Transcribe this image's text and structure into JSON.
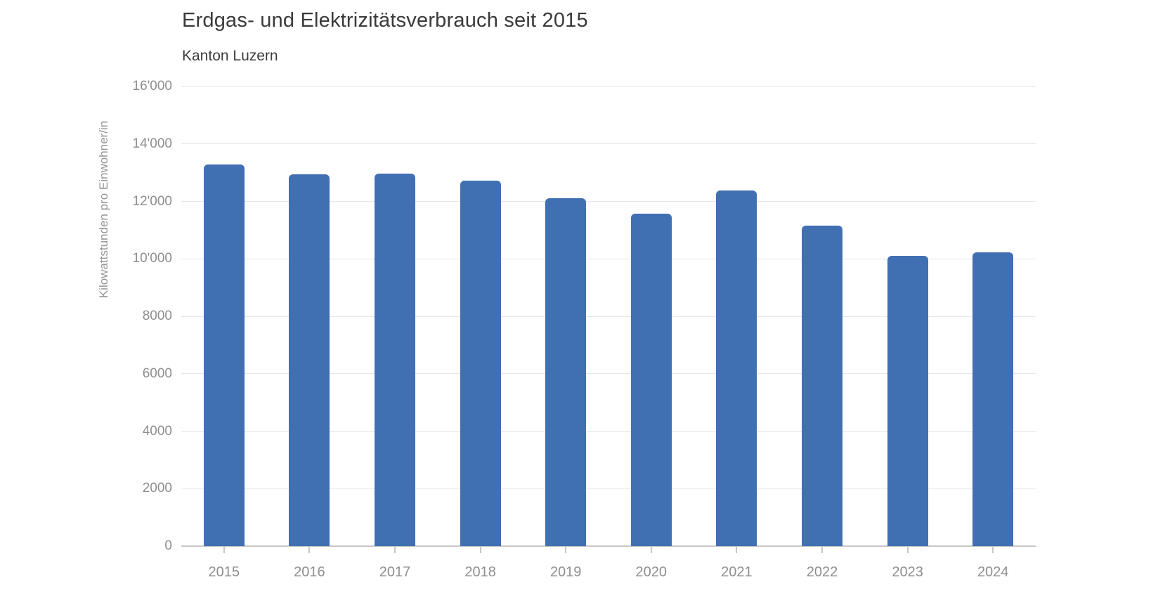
{
  "page": {
    "background": "#ffffff"
  },
  "chart_data": {
    "type": "bar",
    "title": "Erdgas- und Elektrizitätsverbrauch seit 2015",
    "subtitle": "Kanton Luzern",
    "ylabel": "Kilowattstunden pro Einwohner/in",
    "xlabel": "",
    "categories": [
      "2015",
      "2016",
      "2017",
      "2018",
      "2019",
      "2020",
      "2021",
      "2022",
      "2023",
      "2024"
    ],
    "values": [
      13280,
      12950,
      12960,
      12720,
      12120,
      11570,
      12390,
      11150,
      10110,
      10220
    ],
    "ylim": [
      0,
      16000
    ],
    "ytick_interval": 2000,
    "ytick_labels": [
      "0",
      "2000",
      "4000",
      "6000",
      "8000",
      "10'000",
      "12'000",
      "14'000",
      "16'000"
    ],
    "grid": true,
    "legend_position": "none",
    "bar_color": "#4170b2"
  },
  "colors": {
    "title_text": "#3a3a3a",
    "axis_text": "#8e8e8e",
    "gridline": "#e5e5e5",
    "axis_line": "#c7c7c7",
    "bar": "#4170b2",
    "background": "#ffffff"
  }
}
